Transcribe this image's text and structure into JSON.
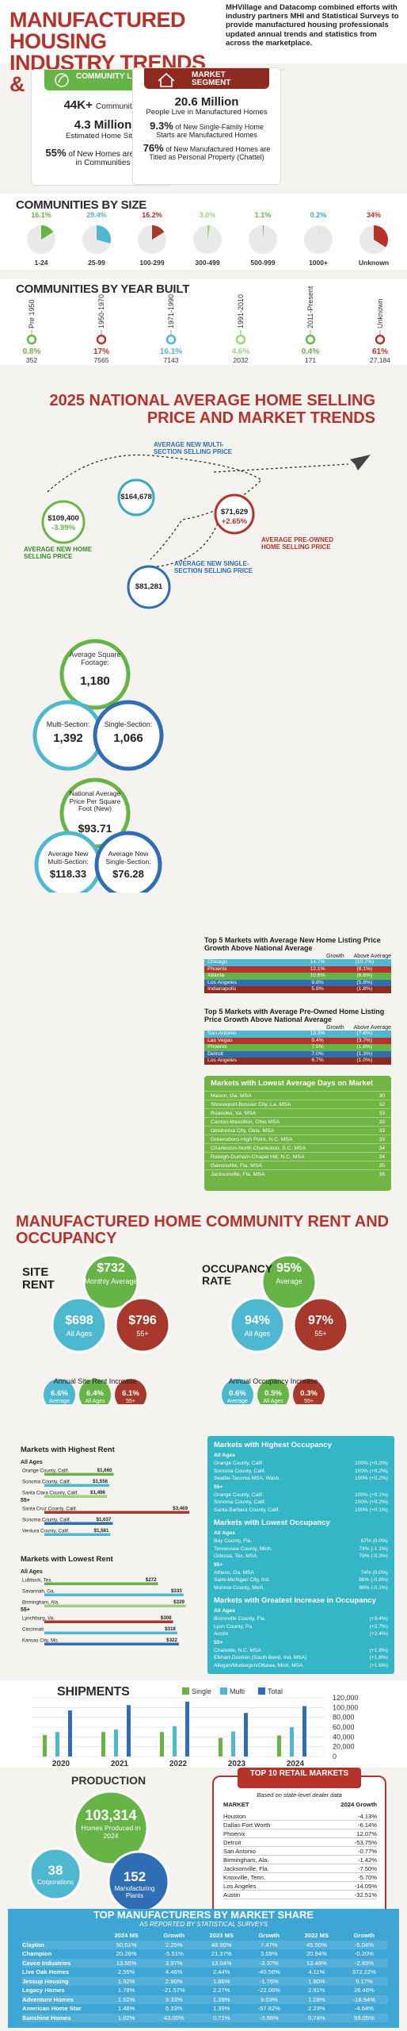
{
  "header": {
    "title": "MANUFACTURED HOUSING INDUSTRY TRENDS & STATISTICS",
    "intro": "MHVillage and Datacomp combined efforts with industry partners MHI and Statistical Surveys to provide manufactured housing professionals updated annual trends and statistics from across the marketplace."
  },
  "community_living": {
    "label": "COMMUNITY LIVING",
    "stats": [
      {
        "value": "44K+",
        "text": "Communities"
      },
      {
        "value": "4.3 Million",
        "text": "Estimated Home Sites"
      },
      {
        "value": "55%",
        "text": "of New Homes are Placed in Communities"
      }
    ]
  },
  "market_segment": {
    "label": "MARKET SEGMENT",
    "people_value": "20.6 Million",
    "people_text": "People Live in Manufactured Homes",
    "starts_value": "9.3%",
    "starts_text": "of New Single-Family Home Starts are Manufactured Homes",
    "chattel_value": "76%",
    "chattel_text": "of New Manufactured Homes are Titled as Personal Property (Chattel)"
  },
  "communities_by_size": {
    "title": "COMMUNITIES BY SIZE",
    "chart_data": {
      "type": "pie",
      "categories": [
        "1-24",
        "25-99",
        "100-299",
        "300-499",
        "500-999",
        "1000+",
        "Unknown"
      ],
      "values": [
        16.1,
        29.4,
        16.2,
        3.0,
        1.1,
        0.2,
        34
      ],
      "labels": [
        "16.1%",
        "29.4%",
        "16.2%",
        "3.0%",
        "1.1%",
        "0.2%",
        "34%"
      ],
      "colors": [
        "#67b446",
        "#4fb8d1",
        "#a8382c",
        "#a3d27c",
        "#6ab648",
        "#3aa8c8",
        "#b5332a"
      ]
    }
  },
  "communities_by_year": {
    "title": "COMMUNITIES BY YEAR BUILT",
    "chart_data": {
      "type": "table",
      "categories": [
        "Pre 1950",
        "1950-1970",
        "1971-1990",
        "1991-2010",
        "2011-Present",
        "Unknown"
      ],
      "percent_labels": [
        "0.8%",
        "17%",
        "16.1%",
        "4.6%",
        "0.4%",
        "61%"
      ],
      "counts": [
        "352",
        "7565",
        "7143",
        "2032",
        "171",
        "27,184"
      ],
      "colors": [
        "#67b446",
        "#b5332a",
        "#4fb8d1",
        "#a3d27c",
        "#67b446",
        "#b5332a"
      ]
    }
  },
  "selling_price": {
    "title": "2025 NATIONAL AVERAGE HOME SELLING PRICE AND MARKET TRENDS",
    "new_multi_label": "AVERAGE NEW MULTI-SECTION SELLING PRICE",
    "new_multi_value": "$164,678",
    "new_label": "AVERAGE NEW HOME SELLING PRICE",
    "new_value": "$109,400",
    "new_change": "-3.99%",
    "preowned_label": "AVERAGE PRE-OWNED HOME SELLING PRICE",
    "preowned_value": "$71,629",
    "preowned_change": "+2.65%",
    "single_label": "AVERAGE NEW SINGLE-SECTION SELLING PRICE",
    "single_value": "$81,281"
  },
  "square_footage": {
    "heading": "Average Square Footage:",
    "avg": "1,180",
    "multi_label": "Multi-Section:",
    "multi": "1,392",
    "single_label": "Single-Section:",
    "single": "1,066"
  },
  "price_per_sqft": {
    "heading": "National Average Price Per Square Foot (New)",
    "avg": "$93.71",
    "multi_label": "Average New Multi-Section:",
    "multi": "$118.33",
    "single_label": "Average New Single-Section:",
    "single": "$76.28"
  },
  "top5_new": {
    "title": "Top 5 Markets with Average New Home Listing Price Growth Above National Average",
    "col1": "Growth",
    "col2": "Above Average",
    "rows": [
      [
        "Chicago",
        "14.7%",
        "(10.7%)"
      ],
      [
        "Phoenix",
        "12.1%",
        "(8.1%)"
      ],
      [
        "Atlanta",
        "10.6%",
        "(6.6%)"
      ],
      [
        "Los Angeles",
        "9.8%",
        "(5.8%)"
      ],
      [
        "Indianapolis",
        "5.8%",
        "(1.8%)"
      ]
    ]
  },
  "top5_preowned": {
    "title": "Top 5 Markets with Average Pre-Owned Home Listing Price Growth Above National Average",
    "col1": "Growth",
    "col2": "Above Average",
    "rows": [
      [
        "San Antonio",
        "13.3%",
        "(7.6%)"
      ],
      [
        "Las Vegas",
        "9.4%",
        "(3.7%)"
      ],
      [
        "Phoenix",
        "7.5%",
        "(1.8%)"
      ],
      [
        "Detroit",
        "7.0%",
        "(1.3%)"
      ],
      [
        "Los Angeles",
        "6.7%",
        "(1.0%)"
      ]
    ]
  },
  "lowest_days": {
    "title": "Markets with Lowest Average Days on Market",
    "rows": [
      [
        "Macon, Ga. MSA",
        "30"
      ],
      [
        "Shreveport-Bossier City, La. MSA",
        "32"
      ],
      [
        "Roanoke, Va. MSA",
        "33"
      ],
      [
        "Canton-Massillon, Ohio MSA",
        "33"
      ],
      [
        "Oklahoma City, Okla. MSA",
        "33"
      ],
      [
        "Greensboro-High Point, N.C. MSA",
        "33"
      ],
      [
        "Charleston-North Charleston, S.C. MSA",
        "34"
      ],
      [
        "Raleigh-Durham-Chapel Hill, N.C. MSA",
        "34"
      ],
      [
        "Gainesville, Fla. MSA",
        "35"
      ],
      [
        "Jacksonville, Fla. MSA",
        "36"
      ]
    ]
  },
  "rent": {
    "title": "MANUFACTURED HOME COMMUNITY RENT AND OCCUPANCY",
    "site_rent_label": "SITE RENT",
    "monthly": "$732",
    "monthly_label": "Monthly Average",
    "all_ages": "$698",
    "all_ages_label": "All Ages",
    "plus55": "$796",
    "plus55_label": "55+",
    "increase_label": "Annual Site Rent Increase",
    "inc_avg": "6.6%",
    "inc_avg_label": "Average",
    "inc_all": "6.4%",
    "inc_all_label": "All Ages",
    "inc_55": "6.1%",
    "inc_55_label": "55+"
  },
  "occupancy": {
    "label": "OCCUPANCY RATE",
    "avg": "95%",
    "avg_label": "Average",
    "all_ages": "94%",
    "all_ages_label": "All Ages",
    "plus55": "97%",
    "plus55_label": "55+",
    "increase_label": "Annual Occupancy Increase",
    "inc_avg": "0.6%",
    "inc_avg_label": "Average",
    "inc_all": "0.5%",
    "inc_all_label": "All Ages",
    "inc_55": "0.3%",
    "inc_55_label": "55+"
  },
  "highest_rent": {
    "title": "Markets with Highest Rent",
    "groups": [
      "All Ages",
      "55+"
    ],
    "chart_data": {
      "type": "bar",
      "categories": [
        "Orange County, Calif.",
        "Sonoma County, Calif.",
        "Santa Clara County, Calif.",
        "Santa Cruz County, Calif.",
        "Sonoma County, Calif.",
        "Ventura County, Calif."
      ],
      "values": [
        1660,
        1556,
        1496,
        3469,
        1637,
        1581
      ],
      "labels": [
        "$1,660",
        "$1,556",
        "$1,496",
        "$3,469",
        "$1,637",
        "$1,581"
      ]
    }
  },
  "lowest_rent": {
    "title": "Markets with Lowest Rent",
    "groups": [
      "All Ages",
      "55+"
    ],
    "chart_data": {
      "type": "bar",
      "categories": [
        "Lubbock, Tex.",
        "Savannah, Ga.",
        "Birmingham, Ala.",
        "Lynchburg, Va.",
        "Cincinnati",
        "Kansas City, Mo."
      ],
      "values": [
        272,
        333,
        339,
        308,
        318,
        322
      ],
      "labels": [
        "$272",
        "$333",
        "$339",
        "$308",
        "$318",
        "$322"
      ]
    }
  },
  "occupancy_panel": {
    "highest_title": "Markets with Highest Occupancy",
    "highest_all_ages": [
      [
        "Orange County, Calif.",
        "100% (+0.2%)"
      ],
      [
        "Sonoma County, Calif.",
        "100% (+0.2%)"
      ],
      [
        "Seattle-Tacoma MSA, Wash.",
        "100% (+0.2%)"
      ]
    ],
    "highest_55": [
      [
        "Orange County, Calif.",
        "100% (+0.1%)"
      ],
      [
        "Sonoma County, Calif.",
        "100% (+0.2%)"
      ],
      [
        "Santa Barbara County, Calif.",
        "100% (+0.1%)"
      ]
    ],
    "lowest_title": "Markets with Lowest Occupancy",
    "lowest_all_ages": [
      [
        "Bay County, Fla.",
        "67% (0.0%)"
      ],
      [
        "Tennessee County, Mich.",
        "74% (-1.1%)"
      ],
      [
        "Odessa, Tex. MSA",
        "79% (-0.3%)"
      ]
    ],
    "lowest_55": [
      [
        "Athens, Ga. MSA",
        "74% (0.0%)"
      ],
      [
        "Saint-Michigan City, Ind.",
        "86% (-0.8%)"
      ],
      [
        "Monroe County, Mich.",
        "86% (-0.1%)"
      ]
    ],
    "greatest_title": "Markets with Greatest Increase in Occupancy",
    "greatest_all_ages": [
      [
        "Bronxville County, Fla.",
        "(+3.4%)"
      ],
      [
        "Lyon County, Pa.",
        "(+2.7%)"
      ],
      [
        "Austin",
        "(+2.4%)"
      ]
    ],
    "greatest_55": [
      [
        "Charlotte, N.C. MSA",
        "(+1.8%)"
      ],
      [
        "Elkhart-Goshen (South Bend, Ind. MSA)",
        "(+1.8%)"
      ],
      [
        "Allegan/Muskegon/Ottawa, Mich. MSA",
        "(+1.6%)"
      ]
    ],
    "sub_all_ages": "All Ages",
    "sub_55": "55+"
  },
  "shipments": {
    "title": "SHIPMENTS",
    "chart_data": {
      "type": "bar",
      "categories": [
        "2020",
        "2021",
        "2022",
        "2023",
        "2024"
      ],
      "series": [
        {
          "name": "Single",
          "values": [
            44000,
            50000,
            50000,
            38000,
            43000
          ],
          "color": "#67b446"
        },
        {
          "name": "Multi",
          "values": [
            50000,
            55000,
            62000,
            51000,
            60000
          ],
          "color": "#4fb8d1"
        },
        {
          "name": "Total",
          "values": [
            94000,
            105000,
            112000,
            89000,
            103000
          ],
          "color": "#2f6db5"
        }
      ],
      "ylim": [
        0,
        120000
      ],
      "yticks": [
        "120,000",
        "100,000",
        "80,000",
        "60,000",
        "40,000",
        "20,000",
        "0"
      ]
    }
  },
  "production": {
    "title": "PRODUCTION",
    "homes": "103,314",
    "homes_label": "Homes Produced in 2024",
    "corps": "38",
    "corps_label": "Corporations",
    "plants": "152",
    "plants_label": "Manufacturing Plants"
  },
  "top10_retail": {
    "title": "TOP 10 RETAIL MARKETS",
    "subtitle": "Based on state-level dealer data",
    "col_market": "MARKET",
    "col_growth": "2024 Growth",
    "rows": [
      [
        "Houston",
        "-4.13%"
      ],
      [
        "Dallas-Fort Worth",
        "-6.14%"
      ],
      [
        "Phoenix",
        "12.07%"
      ],
      [
        "Detroit",
        "-53.75%"
      ],
      [
        "San Antonio",
        "-0.77%"
      ],
      [
        "Birmingham, Ala.",
        "-1.42%"
      ],
      [
        "Jacksonville, Fla.",
        "-7.50%"
      ],
      [
        "Knoxville, Tenn.",
        "-5.70%"
      ],
      [
        "Los Angeles",
        "-14.05%"
      ],
      [
        "Austin",
        "-32.51%"
      ]
    ]
  },
  "top_manufacturers": {
    "title": "TOP MANUFACTURERS BY MARKET SHARE",
    "subtitle": "AS REPORTED BY STATISTICAL SURVEYS",
    "columns": [
      "",
      "2024 MS",
      "Growth",
      "2023 MS",
      "Growth",
      "2022 MS",
      "Growth"
    ],
    "rows": [
      [
        "Clayton",
        "50.01%",
        "2.25%",
        "48.90%",
        "7.47%",
        "45.50%",
        "-5.04%"
      ],
      [
        "Champion",
        "20.28%",
        "-5.51%",
        "21.37%",
        "3.09%",
        "20.94%",
        "-0.20%"
      ],
      [
        "Cavco Industries",
        "13.55%",
        "3.97%",
        "13.04%",
        "-3.37%",
        "13.49%",
        "-2.93%"
      ],
      [
        "Live Oak Homes",
        "2.55%",
        "4.46%",
        "2.44%",
        "-40.56%",
        "4.11%",
        "372.22%"
      ],
      [
        "Jessup Housing",
        "1.92%",
        "2.90%",
        "1.86%",
        "-1.76%",
        "1.90%",
        "9.17%"
      ],
      [
        "Legacy Homes",
        "1.78%",
        "-21.57%",
        "2.27%",
        "-22.06%",
        "2.91%",
        "26.46%"
      ],
      [
        "Adventure Homes",
        "1.52%",
        "9.33%",
        "1.39%",
        "9.03%",
        "1.28%",
        "-18.94%"
      ],
      [
        "American Home Star",
        "1.48%",
        "6.33%",
        "1.39%",
        "-57.82%",
        "2.23%",
        "-4.64%"
      ],
      [
        "Sunshine Homes",
        "1.02%",
        "43.00%",
        "0.71%",
        "-3.66%",
        "0.74%",
        "59.05%"
      ]
    ]
  },
  "colors": {
    "red": "#b5332a",
    "darkred": "#8f2a1f",
    "green": "#67b446",
    "teal": "#4fb8d1",
    "blue": "#2f6db5",
    "navy": "#1f4f8f"
  }
}
